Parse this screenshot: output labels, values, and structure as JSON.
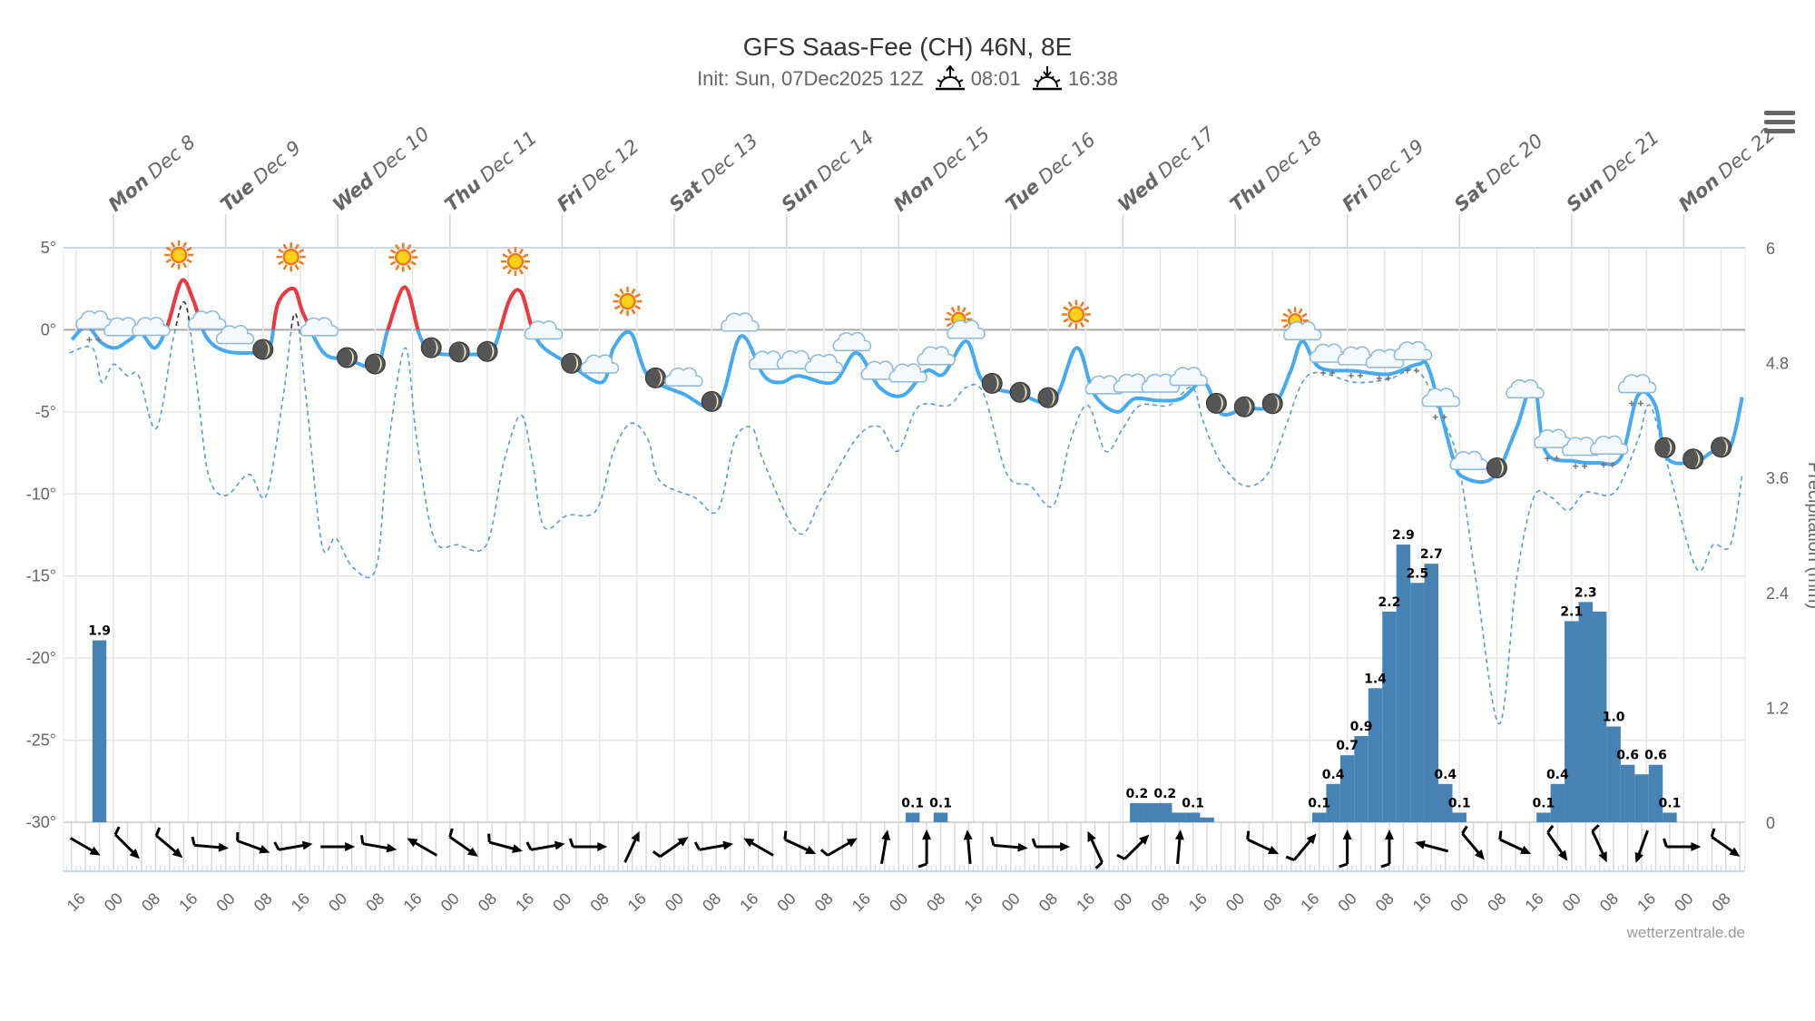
{
  "title": "GFS Saas-Fee (CH) 46N, 8E",
  "subtitle": {
    "init": "Init: Sun, 07Dec2025 12Z",
    "sunrise": "08:01",
    "sunset": "16:38"
  },
  "menu_icon": "hamburger-menu-icon",
  "watermark": "wetterzentrale.de",
  "colors": {
    "temp_line": "#45aaf2",
    "temp_above_zero": "#f0383b",
    "dashed_line": "#5b9bd5",
    "precip_bar": "#4682b4",
    "grid": "#e6e6e6",
    "zero_line": "#aaaaaa"
  },
  "chart_data": {
    "type": "line",
    "x_unit": "hours from Mon Dec 8 00:00",
    "x_range": [
      -11,
      349
    ],
    "days": [
      {
        "dow": "Mon",
        "date": "Dec 8"
      },
      {
        "dow": "Tue",
        "date": "Dec 9"
      },
      {
        "dow": "Wed",
        "date": "Dec 10"
      },
      {
        "dow": "Thu",
        "date": "Dec 11"
      },
      {
        "dow": "Fri",
        "date": "Dec 12"
      },
      {
        "dow": "Sat",
        "date": "Dec 13"
      },
      {
        "dow": "Sun",
        "date": "Dec 14"
      },
      {
        "dow": "Mon",
        "date": "Dec 15"
      },
      {
        "dow": "Tue",
        "date": "Dec 16"
      },
      {
        "dow": "Wed",
        "date": "Dec 17"
      },
      {
        "dow": "Thu",
        "date": "Dec 18"
      },
      {
        "dow": "Fri",
        "date": "Dec 19"
      },
      {
        "dow": "Sat",
        "date": "Dec 20"
      },
      {
        "dow": "Sun",
        "date": "Dec 21"
      },
      {
        "dow": "Mon",
        "date": "Dec 22"
      }
    ],
    "hour_tick_start": -8,
    "hour_tick_step": 8,
    "hour_labels": [
      "16",
      "00",
      "08",
      "16",
      "00",
      "08",
      "16",
      "00",
      "08",
      "16",
      "00",
      "08",
      "16",
      "00",
      "08",
      "16",
      "00",
      "08",
      "16",
      "00",
      "08",
      "16",
      "00",
      "08",
      "16",
      "00",
      "08",
      "16",
      "00",
      "08",
      "16",
      "00",
      "08",
      "16",
      "00",
      "08",
      "16",
      "00",
      "08",
      "16",
      "00",
      "08",
      "16",
      "00",
      "08"
    ],
    "temp_axis": {
      "ylim": [
        -30,
        5
      ],
      "ticks": [
        5,
        0,
        -5,
        -10,
        -15,
        -20,
        -25,
        -30
      ],
      "labels": [
        "5°",
        "0°",
        "-5°",
        "-10°",
        "-15°",
        "-20°",
        "-25°",
        "-30°"
      ]
    },
    "precip_axis": {
      "ylim": [
        0,
        6
      ],
      "ticks": [
        6,
        4.8,
        3.6,
        2.4,
        1.2,
        0
      ],
      "labels": [
        "6",
        "4.8",
        "3.6",
        "2.4",
        "1.2",
        "0"
      ],
      "title": "Precipitation (mm)"
    },
    "temperature": [
      [
        -8.9,
        -0.6
      ],
      [
        -5.7,
        0.2
      ],
      [
        -2.5,
        -0.8
      ],
      [
        0.5,
        -1.1
      ],
      [
        3.5,
        -0.6
      ],
      [
        5.9,
        -0.2
      ],
      [
        8.9,
        -1.1
      ],
      [
        11.6,
        0.3
      ],
      [
        14.6,
        3
      ],
      [
        17.1,
        1.8
      ],
      [
        19.8,
        -0.4
      ],
      [
        24,
        -1.3
      ],
      [
        30.7,
        -1.4
      ],
      [
        33.4,
        -1.2
      ],
      [
        35.2,
        1.6
      ],
      [
        38.6,
        2.5
      ],
      [
        40.6,
        1
      ],
      [
        45,
        -1.4
      ],
      [
        50,
        -1.8
      ],
      [
        56.2,
        -2.2
      ],
      [
        58.7,
        0
      ],
      [
        62.4,
        2.6
      ],
      [
        65.6,
        -0.4
      ],
      [
        68.6,
        -1.4
      ],
      [
        77.3,
        -1.5
      ],
      [
        81,
        -1.4
      ],
      [
        84.7,
        1.8
      ],
      [
        87.2,
        2.3
      ],
      [
        89.7,
        0
      ],
      [
        92.1,
        -1.1
      ],
      [
        97.1,
        -2
      ],
      [
        104.5,
        -3.2
      ],
      [
        107,
        -1.1
      ],
      [
        110.7,
        -0.2
      ],
      [
        114.4,
        -2.8
      ],
      [
        121.9,
        -3.9
      ],
      [
        129.3,
        -4.6
      ],
      [
        134.2,
        -0.4
      ],
      [
        139.2,
        -2.8
      ],
      [
        142.9,
        -3.2
      ],
      [
        146.6,
        -2.8
      ],
      [
        154,
        -3.2
      ],
      [
        159,
        -1.4
      ],
      [
        163.9,
        -3.5
      ],
      [
        168.9,
        -4
      ],
      [
        173.9,
        -2.5
      ],
      [
        177.6,
        -2.7
      ],
      [
        182.5,
        -0.7
      ],
      [
        186.2,
        -3.2
      ],
      [
        193.7,
        -3.9
      ],
      [
        201.1,
        -4.3
      ],
      [
        206.1,
        -1.1
      ],
      [
        209.8,
        -3.9
      ],
      [
        214.7,
        -5
      ],
      [
        218.4,
        -4.2
      ],
      [
        223.4,
        -4.3
      ],
      [
        228.4,
        -4.2
      ],
      [
        233.3,
        -3.2
      ],
      [
        237,
        -5.1
      ],
      [
        242,
        -4.8
      ],
      [
        248.2,
        -4.6
      ],
      [
        251.9,
        -2.5
      ],
      [
        254.4,
        -0.7
      ],
      [
        258.1,
        -2.3
      ],
      [
        265.5,
        -2.5
      ],
      [
        272.9,
        -2.7
      ],
      [
        279.1,
        -2.1
      ],
      [
        281.6,
        -2.5
      ],
      [
        286.6,
        -7.8
      ],
      [
        289,
        -9
      ],
      [
        295.2,
        -9
      ],
      [
        300.2,
        -6
      ],
      [
        303.9,
        -3.2
      ],
      [
        306.4,
        -7.4
      ],
      [
        312.6,
        -8
      ],
      [
        317.5,
        -8.1
      ],
      [
        322.5,
        -7.8
      ],
      [
        326.2,
        -4
      ],
      [
        329.9,
        -4.6
      ],
      [
        332.4,
        -7.8
      ],
      [
        338.6,
        -8
      ],
      [
        342.3,
        -7.4
      ],
      [
        346,
        -7.1
      ],
      [
        348.5,
        -4.1
      ]
    ],
    "dashed_series": [
      [
        -9.4,
        -1.4
      ],
      [
        -4.5,
        -1.1
      ],
      [
        -2.5,
        -3.2
      ],
      [
        0,
        -2.1
      ],
      [
        3,
        -2.8
      ],
      [
        5.4,
        -2.8
      ],
      [
        9.2,
        -6
      ],
      [
        12.9,
        -0.4
      ],
      [
        15.4,
        1.6
      ],
      [
        17.8,
        -3.2
      ],
      [
        20.3,
        -8.8
      ],
      [
        24,
        -10.1
      ],
      [
        29,
        -8.8
      ],
      [
        32.7,
        -10.1
      ],
      [
        36.4,
        -3.9
      ],
      [
        38.9,
        1
      ],
      [
        41.4,
        -4.6
      ],
      [
        44.6,
        -13.1
      ],
      [
        47.6,
        -12.7
      ],
      [
        51.3,
        -14.5
      ],
      [
        56.2,
        -14.5
      ],
      [
        58.7,
        -7.4
      ],
      [
        62.4,
        -1.1
      ],
      [
        64.9,
        -6.7
      ],
      [
        68.6,
        -12.7
      ],
      [
        73.6,
        -13.1
      ],
      [
        79.8,
        -13.1
      ],
      [
        83.5,
        -8.1
      ],
      [
        87.2,
        -5.2
      ],
      [
        89.7,
        -8.1
      ],
      [
        92.1,
        -12
      ],
      [
        97.1,
        -11.3
      ],
      [
        103.3,
        -11
      ],
      [
        107,
        -7.4
      ],
      [
        110.7,
        -5.7
      ],
      [
        114.4,
        -6.7
      ],
      [
        116.9,
        -9.2
      ],
      [
        124.3,
        -10.2
      ],
      [
        129.3,
        -11
      ],
      [
        133,
        -6.7
      ],
      [
        136.7,
        -6
      ],
      [
        139.2,
        -8.1
      ],
      [
        146.6,
        -12.4
      ],
      [
        151.6,
        -10.2
      ],
      [
        159,
        -6.6
      ],
      [
        163.9,
        -5.9
      ],
      [
        167.7,
        -7.4
      ],
      [
        171.4,
        -5
      ],
      [
        173.9,
        -4.5
      ],
      [
        178.8,
        -4.6
      ],
      [
        182.5,
        -3.5
      ],
      [
        186.2,
        -3.9
      ],
      [
        191.2,
        -8.8
      ],
      [
        196.2,
        -9.5
      ],
      [
        201.1,
        -10.7
      ],
      [
        204.8,
        -6.7
      ],
      [
        208.5,
        -4.6
      ],
      [
        212.3,
        -7.4
      ],
      [
        216,
        -6
      ],
      [
        219.7,
        -4.6
      ],
      [
        225.9,
        -4.6
      ],
      [
        230.8,
        -3.5
      ],
      [
        233.3,
        -5.7
      ],
      [
        237,
        -8.1
      ],
      [
        242,
        -9.5
      ],
      [
        246.9,
        -8.8
      ],
      [
        250.7,
        -6
      ],
      [
        254.4,
        -3.2
      ],
      [
        258.1,
        -2.6
      ],
      [
        265.5,
        -3.2
      ],
      [
        272.9,
        -3
      ],
      [
        279.1,
        -2.5
      ],
      [
        284.1,
        -5.3
      ],
      [
        287.8,
        -8.1
      ],
      [
        291.5,
        -15.2
      ],
      [
        296.5,
        -24
      ],
      [
        300.2,
        -15.2
      ],
      [
        303.9,
        -10.2
      ],
      [
        307.6,
        -10.2
      ],
      [
        311.3,
        -11
      ],
      [
        315,
        -9.9
      ],
      [
        321.2,
        -9.9
      ],
      [
        326.2,
        -6.7
      ],
      [
        328.7,
        -4.6
      ],
      [
        332.4,
        -8.1
      ],
      [
        338.6,
        -14.5
      ],
      [
        342.3,
        -13.1
      ],
      [
        346,
        -13.1
      ],
      [
        348.5,
        -8.8
      ]
    ],
    "precip_bar_hours": 3,
    "precipitation": [
      {
        "h": -3,
        "v": 1.9,
        "label": "1.9"
      },
      {
        "h": 171,
        "v": 0.1,
        "label": "0.1"
      },
      {
        "h": 177,
        "v": 0.1,
        "label": "0.1"
      },
      {
        "h": 219,
        "v": 0.2,
        "label": "0.2"
      },
      {
        "h": 222,
        "v": 0.2,
        "label": ""
      },
      {
        "h": 225,
        "v": 0.2,
        "label": "0.2"
      },
      {
        "h": 228,
        "v": 0.1,
        "label": ""
      },
      {
        "h": 231,
        "v": 0.1,
        "label": "0.1"
      },
      {
        "h": 234,
        "v": 0.05,
        "label": ""
      },
      {
        "h": 258,
        "v": 0.1,
        "label": "0.1"
      },
      {
        "h": 261,
        "v": 0.4,
        "label": "0.4"
      },
      {
        "h": 264,
        "v": 0.7,
        "label": "0.7"
      },
      {
        "h": 267,
        "v": 0.9,
        "label": "0.9"
      },
      {
        "h": 270,
        "v": 1.4,
        "label": "1.4"
      },
      {
        "h": 273,
        "v": 2.2,
        "label": "2.2"
      },
      {
        "h": 276,
        "v": 2.9,
        "label": "2.9"
      },
      {
        "h": 279,
        "v": 2.5,
        "label": "2.5"
      },
      {
        "h": 282,
        "v": 2.7,
        "label": "2.7"
      },
      {
        "h": 285,
        "v": 0.4,
        "label": "0.4"
      },
      {
        "h": 288,
        "v": 0.1,
        "label": "0.1"
      },
      {
        "h": 306,
        "v": 0.1,
        "label": "0.1"
      },
      {
        "h": 309,
        "v": 0.4,
        "label": "0.4"
      },
      {
        "h": 312,
        "v": 2.1,
        "label": "2.1"
      },
      {
        "h": 315,
        "v": 2.3,
        "label": "2.3"
      },
      {
        "h": 318,
        "v": 2.2,
        "label": ""
      },
      {
        "h": 321,
        "v": 1.0,
        "label": "1.0"
      },
      {
        "h": 324,
        "v": 0.6,
        "label": "0.6"
      },
      {
        "h": 327,
        "v": 0.5,
        "label": ""
      },
      {
        "h": 330,
        "v": 0.6,
        "label": "0.6"
      },
      {
        "h": 333,
        "v": 0.1,
        "label": "0.1"
      }
    ],
    "wind": {
      "start_hour": -6,
      "step_hours": 9,
      "direction_deg": [
        30,
        45,
        40,
        5,
        20,
        -10,
        0,
        10,
        -150,
        35,
        15,
        -10,
        0,
        -65,
        -35,
        -10,
        -150,
        25,
        -30,
        -80,
        -90,
        -95,
        5,
        0,
        -115,
        -45,
        -85,
        null,
        25,
        -50,
        -90,
        -90,
        -165,
        50,
        25,
        55,
        65,
        110,
        0,
        35
      ],
      "barb": [
        0,
        1,
        1,
        1,
        1,
        1,
        0,
        1,
        0,
        1,
        1,
        1,
        1,
        0,
        1,
        1,
        0,
        1,
        1,
        0,
        1,
        0,
        1,
        1,
        1,
        1,
        0,
        0,
        1,
        1,
        1,
        1,
        0,
        1,
        1,
        1,
        1,
        0,
        1,
        1
      ]
    },
    "weather_icons": {
      "start_hour": -4,
      "step_hours": 6,
      "types": [
        "snow-cloud",
        "cloud",
        "cloud",
        "sun",
        "cloud",
        "cloud",
        "moon",
        "sun",
        "cloud",
        "moon",
        "moon",
        "sun",
        "moon",
        "moon",
        "moon",
        "sun",
        "cloud",
        "moon",
        "cloud",
        "sun",
        "moon",
        "cloud",
        "moon",
        "cloud",
        "cloud",
        "cloud",
        "cloud",
        "cloud",
        "cloud",
        "cloud",
        "cloud",
        "sun-cloud",
        "moon",
        "moon",
        "moon",
        "sun",
        "cloud",
        "cloud",
        "cloud",
        "cloud",
        "moon",
        "moon",
        "moon",
        "sun-cloud",
        "snow-cloud",
        "snow-cloud",
        "snow-cloud",
        "snow-cloud",
        "snow-cloud",
        "cloud",
        "moon",
        "cloud",
        "snow-cloud",
        "snow-cloud",
        "snow-cloud",
        "snow-cloud",
        "moon",
        "moon",
        "moon"
      ]
    }
  }
}
